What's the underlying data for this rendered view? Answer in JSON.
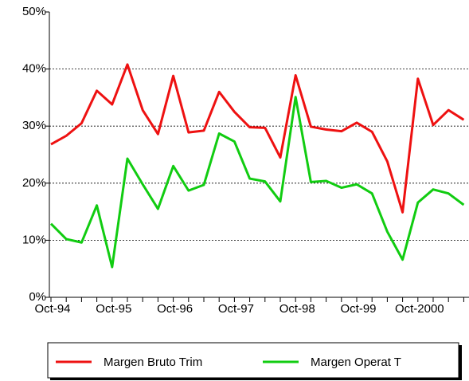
{
  "chart_data": {
    "type": "line",
    "categories": [
      "Oct-94",
      null,
      null,
      null,
      "Oct-95",
      null,
      null,
      null,
      "Oct-96",
      null,
      null,
      null,
      "Oct-97",
      null,
      null,
      null,
      "Oct-98",
      null,
      null,
      null,
      "Oct-99",
      null,
      null,
      null,
      "Oct-2000",
      null,
      null,
      null
    ],
    "series": [
      {
        "name": "Margen Bruto Trim",
        "color": "#ee1111",
        "values": [
          26.8,
          28.3,
          30.5,
          36.2,
          33.8,
          40.8,
          32.8,
          28.6,
          38.8,
          28.9,
          29.2,
          36,
          32.5,
          29.8,
          29.7,
          24.5,
          38.9,
          29.9,
          29.4,
          29.1,
          30.6,
          29,
          23.8,
          14.9,
          38.3,
          30.2,
          32.8,
          31.1
        ]
      },
      {
        "name": "Margen Operat T",
        "color": "#11cc11",
        "values": [
          12.9,
          10.2,
          9.6,
          16.1,
          5.3,
          24.3,
          19.8,
          15.5,
          23,
          18.7,
          19.7,
          28.7,
          27.3,
          20.8,
          20.3,
          16.8,
          35.1,
          20.2,
          20.4,
          19.2,
          19.8,
          18.2,
          11.5,
          6.6,
          16.6,
          18.9,
          18.2,
          16.2
        ]
      }
    ],
    "ylim": [
      0,
      50
    ],
    "yticks": [
      {
        "value": 0,
        "label": "0%"
      },
      {
        "value": 10,
        "label": "10%"
      },
      {
        "value": 20,
        "label": "20%"
      },
      {
        "value": 30,
        "label": "30%"
      },
      {
        "value": 40,
        "label": "40%"
      },
      {
        "value": 50,
        "label": "50%"
      }
    ],
    "grid": true,
    "legend": "bottom"
  }
}
